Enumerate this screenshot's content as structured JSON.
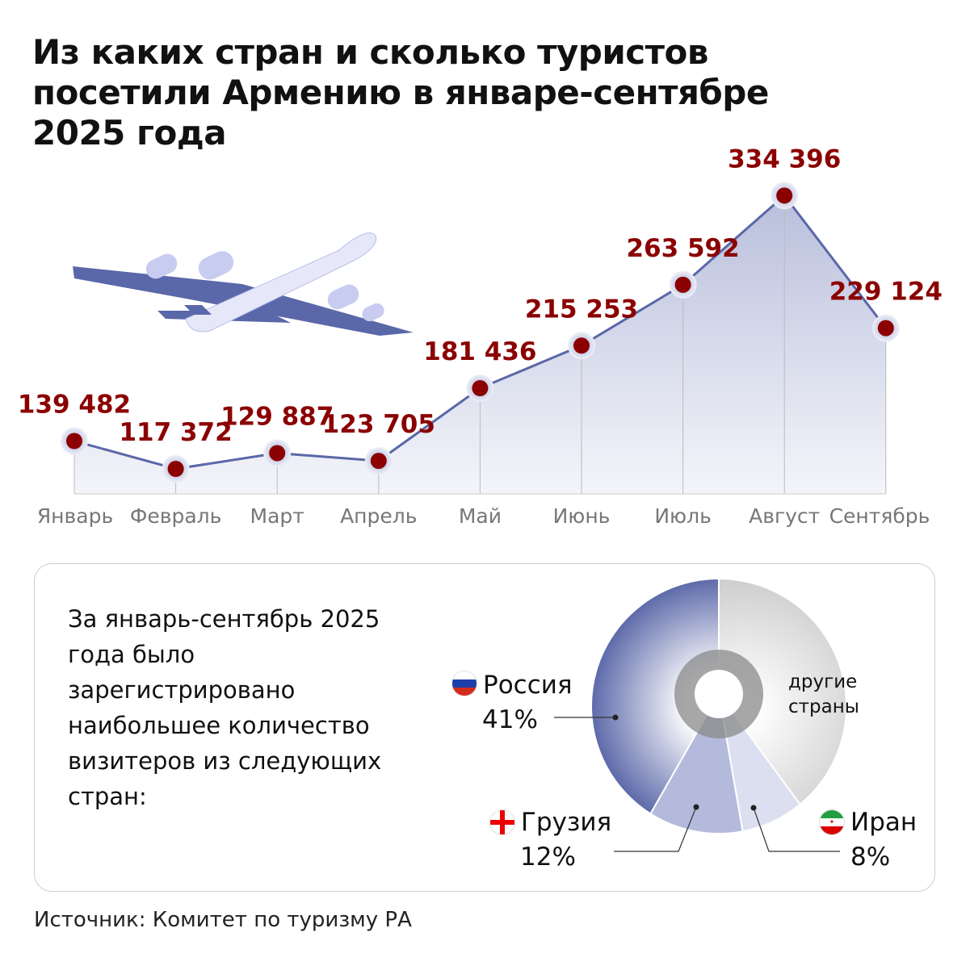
{
  "title": "Из каких стран и сколько туристов посетили Армению в январе-сентябре 2025 года",
  "chart_data": [
    {
      "type": "area",
      "categories": [
        "Январь",
        "Февраль",
        "Март",
        "Апрель",
        "Май",
        "Июнь",
        "Июль",
        "Август",
        "Сентябрь"
      ],
      "values": [
        139482,
        117372,
        129887,
        123705,
        181436,
        215253,
        263592,
        334396,
        229124
      ],
      "data_labels": [
        "139 482",
        "117 372",
        "129 887",
        "123 705",
        "181 436",
        "215 253",
        "263 592",
        "334 396",
        "229 124"
      ],
      "title": "",
      "xlabel": "",
      "ylabel": "",
      "ylim": [
        97500,
        350000
      ],
      "grid": false,
      "colors": {
        "line": "#5a67a8",
        "marker": "#8b0000",
        "label": "#8b0000"
      }
    },
    {
      "type": "pie",
      "style": "donut",
      "slices": [
        {
          "label": "другие страны",
          "value": 39,
          "color": "#d6d6d6"
        },
        {
          "label": "Иран",
          "value": 8,
          "display": "8%",
          "color": "#d5d9ec"
        },
        {
          "label": "Грузия",
          "value": 12,
          "display": "12%",
          "color": "#b3badb"
        },
        {
          "label": "Россия",
          "value": 41,
          "display": "41%",
          "color": "#5a67a8"
        }
      ]
    }
  ],
  "summary": "За январь-сентябрь 2025 года было зарегистрировано наибольшее количество визитеров из следующих стран:",
  "countries": {
    "russia": {
      "name": "Россия",
      "pct": "41%",
      "icon": "russia-flag-icon"
    },
    "georgia": {
      "name": "Грузия",
      "pct": "12%",
      "icon": "georgia-flag-icon"
    },
    "iran": {
      "name": "Иран",
      "pct": "8%",
      "icon": "iran-flag-icon"
    },
    "others": {
      "line1": "другие",
      "line2": "страны"
    }
  },
  "source": "Источник: Комитет по туризму РА"
}
